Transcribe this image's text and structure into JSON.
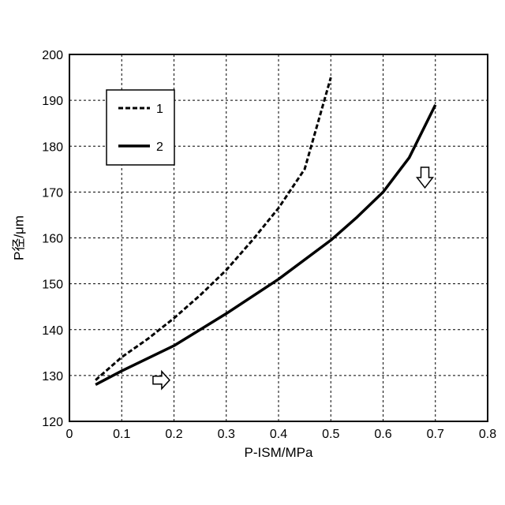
{
  "chart_data": {
    "type": "line",
    "xlabel": "P-ISM/MPa",
    "ylabel": "P径/μm",
    "xlim": [
      0,
      0.8
    ],
    "ylim": [
      120,
      200
    ],
    "x_ticks": [
      "0",
      "0.1",
      "0.2",
      "0.3",
      "0.4",
      "0.5",
      "0.6",
      "0.7",
      "0.8"
    ],
    "y_ticks": [
      "120",
      "130",
      "140",
      "150",
      "160",
      "170",
      "180",
      "190",
      "200"
    ],
    "grid": true,
    "legend_position": "top-left",
    "series": [
      {
        "name": "1",
        "style": "dashed",
        "color": "#000000",
        "x": [
          0.05,
          0.1,
          0.15,
          0.2,
          0.25,
          0.3,
          0.35,
          0.4,
          0.45,
          0.5
        ],
        "y": [
          129,
          134,
          138,
          142.5,
          147.5,
          153,
          159.5,
          166.5,
          175,
          195
        ]
      },
      {
        "name": "2",
        "style": "solid",
        "color": "#000000",
        "x": [
          0.05,
          0.1,
          0.2,
          0.3,
          0.4,
          0.5,
          0.55,
          0.6,
          0.65,
          0.7
        ],
        "y": [
          128,
          131,
          136.5,
          143.5,
          151,
          159.5,
          164.5,
          170,
          177.5,
          189
        ]
      }
    ],
    "annotations": [
      {
        "type": "arrow",
        "direction": "right",
        "x": 0.175,
        "y": 129
      },
      {
        "type": "arrow",
        "direction": "down",
        "x": 0.68,
        "y": 173
      }
    ]
  }
}
